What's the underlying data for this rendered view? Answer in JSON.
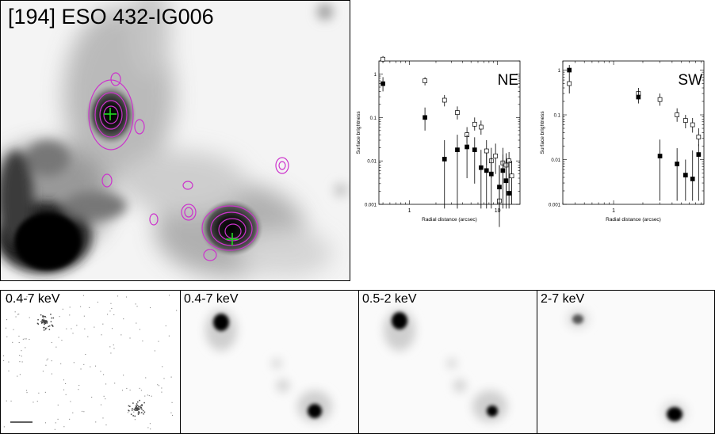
{
  "main_image": {
    "title": "[194] ESO 432-IG006"
  },
  "xray_panels": [
    {
      "label": "0.4-7 keV"
    },
    {
      "label": "0.4-7 keV"
    },
    {
      "label": "0.5-2 keV"
    },
    {
      "label": "2-7 keV"
    }
  ],
  "chart_data": [
    {
      "type": "scatter",
      "title": "",
      "corner_label": "NE",
      "xlabel": "Radial distance (arcsec)",
      "ylabel": "Surface brightness",
      "x_scale": "log",
      "y_scale": "log",
      "xlim": [
        0.45,
        18
      ],
      "ylim": [
        0.001,
        2
      ],
      "xticks": [
        {
          "v": 1,
          "label": "1"
        },
        {
          "v": 10,
          "label": "10"
        }
      ],
      "yticks": [
        {
          "v": 0.001,
          "label": "0.001"
        },
        {
          "v": 0.01,
          "label": "0.01"
        },
        {
          "v": 0.1,
          "label": "0.1"
        },
        {
          "v": 1,
          "label": "1"
        }
      ],
      "series": [
        {
          "marker": "open-square",
          "points": [
            {
              "x": 0.5,
              "y": 2.2,
              "lo": 1.8,
              "hi": 2.6
            },
            {
              "x": 1.5,
              "y": 0.7,
              "lo": 0.55,
              "hi": 0.85
            },
            {
              "x": 2.5,
              "y": 0.25,
              "lo": 0.18,
              "hi": 0.33
            },
            {
              "x": 3.5,
              "y": 0.13,
              "lo": 0.09,
              "hi": 0.18
            },
            {
              "x": 4.5,
              "y": 0.04,
              "lo": 0.025,
              "hi": 0.06
            },
            {
              "x": 5.5,
              "y": 0.07,
              "lo": 0.05,
              "hi": 0.1
            },
            {
              "x": 6.5,
              "y": 0.06,
              "lo": 0.04,
              "hi": 0.085
            },
            {
              "x": 7.5,
              "y": 0.017,
              "lo": 0.008,
              "hi": 0.03
            },
            {
              "x": 8.5,
              "y": 0.01,
              "lo": 0.004,
              "hi": 0.02
            },
            {
              "x": 9.5,
              "y": 0.013,
              "lo": 0.005,
              "hi": 0.025
            },
            {
              "x": 10.5,
              "y": 0.0012,
              "lo": 0.0003,
              "hi": 0.008
            },
            {
              "x": 11.5,
              "y": 0.009,
              "lo": 0.003,
              "hi": 0.02
            },
            {
              "x": 12.5,
              "y": 0.008,
              "lo": 0.002,
              "hi": 0.015
            },
            {
              "x": 13.5,
              "y": 0.01,
              "lo": 0.004,
              "hi": 0.016
            },
            {
              "x": 14.5,
              "y": 0.0045,
              "lo": 0.001,
              "hi": 0.01
            }
          ]
        },
        {
          "marker": "filled-square",
          "points": [
            {
              "x": 0.5,
              "y": 0.6,
              "lo": 0.4,
              "hi": 0.85
            },
            {
              "x": 1.5,
              "y": 0.1,
              "lo": 0.05,
              "hi": 0.17
            },
            {
              "x": 2.5,
              "y": 0.011,
              "lo": 0.0008,
              "hi": 0.03
            },
            {
              "x": 3.5,
              "y": 0.018,
              "lo": 0.0008,
              "hi": 0.04
            },
            {
              "x": 4.5,
              "y": 0.021,
              "lo": 0.004,
              "hi": 0.04
            },
            {
              "x": 5.5,
              "y": 0.018,
              "lo": 0.003,
              "hi": 0.035
            },
            {
              "x": 6.5,
              "y": 0.007,
              "lo": 0.0008,
              "hi": 0.018
            },
            {
              "x": 7.5,
              "y": 0.006,
              "lo": 0.0008,
              "hi": 0.015
            },
            {
              "x": 8.5,
              "y": 0.005,
              "lo": 0.0008,
              "hi": 0.012
            },
            {
              "x": 10.5,
              "y": 0.0025,
              "lo": 0.0008,
              "hi": 0.008
            },
            {
              "x": 11.5,
              "y": 0.006,
              "lo": 0.0008,
              "hi": 0.014
            },
            {
              "x": 12.5,
              "y": 0.0035,
              "lo": 0.0008,
              "hi": 0.012
            },
            {
              "x": 13.5,
              "y": 0.0018,
              "lo": 0.0008,
              "hi": 0.01
            }
          ]
        }
      ]
    },
    {
      "type": "scatter",
      "title": "",
      "corner_label": "SW",
      "xlabel": "Radial distance (arcsec)",
      "ylabel": "Surface brightness",
      "x_scale": "log",
      "y_scale": "log",
      "xlim": [
        0.3,
        8.5
      ],
      "ylim": [
        0.001,
        1.6
      ],
      "xticks": [
        {
          "v": 1,
          "label": "1"
        }
      ],
      "yticks": [
        {
          "v": 0.001,
          "label": "0.001"
        },
        {
          "v": 0.01,
          "label": "0.01"
        },
        {
          "v": 0.1,
          "label": "0.1"
        },
        {
          "v": 1,
          "label": "1"
        }
      ],
      "series": [
        {
          "marker": "open-square",
          "points": [
            {
              "x": 0.35,
              "y": 0.5,
              "lo": 0.3,
              "hi": 0.75
            },
            {
              "x": 1.8,
              "y": 0.3,
              "lo": 0.22,
              "hi": 0.4
            },
            {
              "x": 3.0,
              "y": 0.22,
              "lo": 0.16,
              "hi": 0.3
            },
            {
              "x": 4.5,
              "y": 0.1,
              "lo": 0.07,
              "hi": 0.14
            },
            {
              "x": 5.5,
              "y": 0.075,
              "lo": 0.05,
              "hi": 0.1
            },
            {
              "x": 6.5,
              "y": 0.06,
              "lo": 0.04,
              "hi": 0.085
            },
            {
              "x": 7.5,
              "y": 0.032,
              "lo": 0.02,
              "hi": 0.05
            }
          ]
        },
        {
          "marker": "filled-square",
          "points": [
            {
              "x": 0.35,
              "y": 1.0,
              "lo": 0.75,
              "hi": 1.3
            },
            {
              "x": 1.8,
              "y": 0.25,
              "lo": 0.18,
              "hi": 0.34
            },
            {
              "x": 3.0,
              "y": 0.012,
              "lo": 0.0012,
              "hi": 0.028
            },
            {
              "x": 4.5,
              "y": 0.008,
              "lo": 0.0012,
              "hi": 0.018
            },
            {
              "x": 5.5,
              "y": 0.0045,
              "lo": 0.0012,
              "hi": 0.01
            },
            {
              "x": 6.5,
              "y": 0.0037,
              "lo": 0.0012,
              "hi": 0.016
            },
            {
              "x": 7.5,
              "y": 0.013,
              "lo": 0.0012,
              "hi": 0.022
            }
          ]
        }
      ]
    }
  ]
}
